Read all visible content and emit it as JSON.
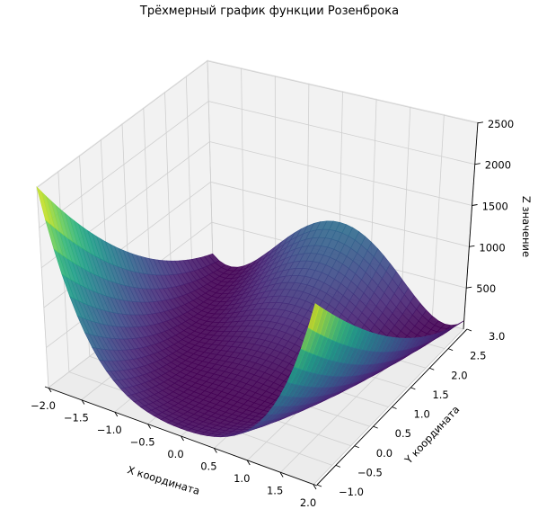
{
  "chart_data": {
    "type": "surface",
    "title": "Трёхмерный график функции Розенброка",
    "xlabel": "X координата",
    "ylabel": "Y координата",
    "zlabel": "Z значение",
    "function": "(1 - x)^2 + 100*(y - x^2)^2",
    "x_range": [
      -2,
      2
    ],
    "y_range": [
      -1,
      3
    ],
    "z_range": [
      0,
      2509
    ],
    "x_ticks": [
      {
        "value": -2.0,
        "label": "−2.0"
      },
      {
        "value": -1.5,
        "label": "−1.5"
      },
      {
        "value": -1.0,
        "label": "−1.0"
      },
      {
        "value": -0.5,
        "label": "−0.5"
      },
      {
        "value": 0.0,
        "label": "0.0"
      },
      {
        "value": 0.5,
        "label": "0.5"
      },
      {
        "value": 1.0,
        "label": "1.0"
      },
      {
        "value": 1.5,
        "label": "1.5"
      },
      {
        "value": 2.0,
        "label": "2.0"
      }
    ],
    "y_ticks": [
      {
        "value": -1.0,
        "label": "−1.0"
      },
      {
        "value": -0.5,
        "label": "−0.5"
      },
      {
        "value": 0.0,
        "label": "0.0"
      },
      {
        "value": 0.5,
        "label": "0.5"
      },
      {
        "value": 1.0,
        "label": "1.0"
      },
      {
        "value": 1.5,
        "label": "1.5"
      },
      {
        "value": 2.0,
        "label": "2.0"
      },
      {
        "value": 2.5,
        "label": "2.5"
      },
      {
        "value": 3.0,
        "label": "3.0"
      }
    ],
    "z_ticks": [
      {
        "value": 500,
        "label": "500"
      },
      {
        "value": 1000,
        "label": "1000"
      },
      {
        "value": 1500,
        "label": "1500"
      },
      {
        "value": 2000,
        "label": "2000"
      },
      {
        "value": 2500,
        "label": "2500"
      }
    ],
    "colormap": "viridis",
    "grid": true
  }
}
